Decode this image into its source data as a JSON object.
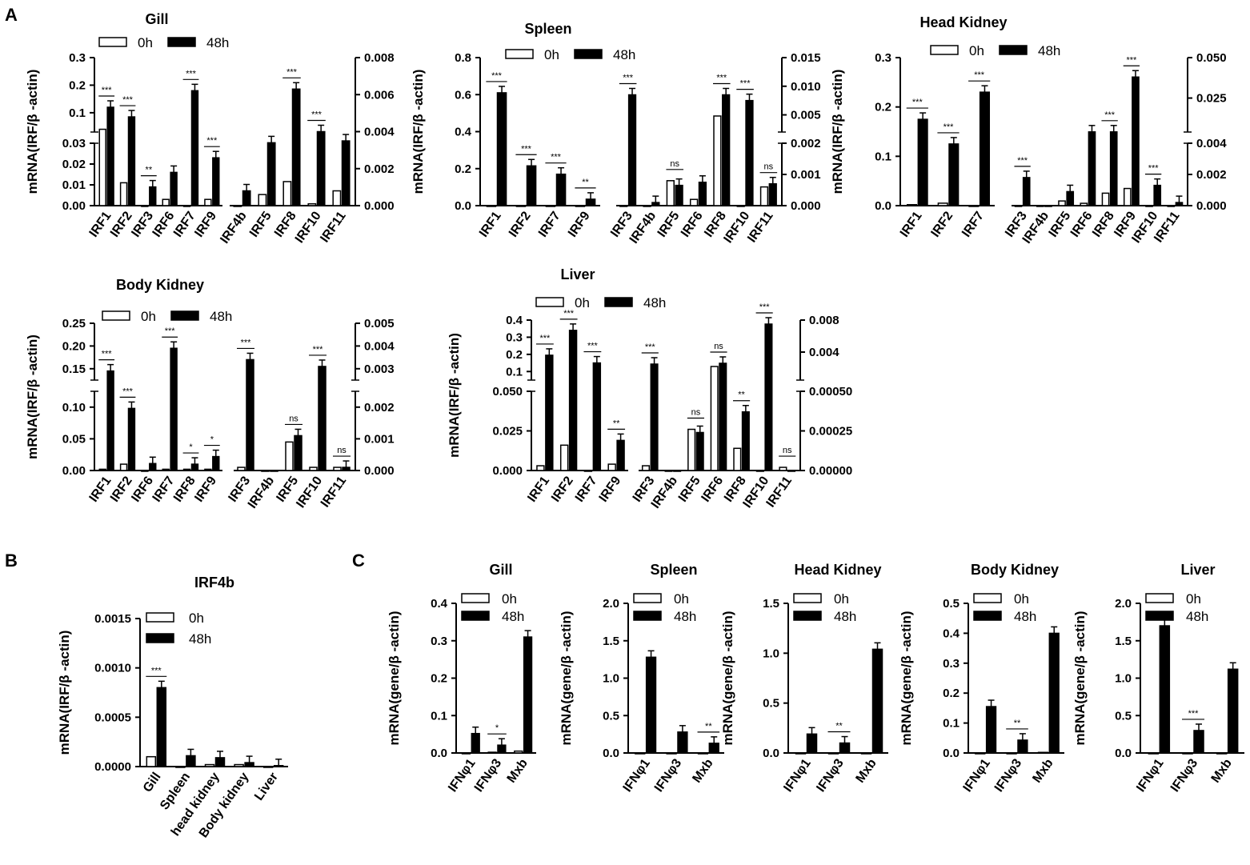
{
  "panel_labels": [
    "A",
    "B",
    "C"
  ],
  "legend": {
    "label_0h": "0h",
    "label_48h": "48h"
  },
  "chart_data": [
    {
      "id": "A-gill",
      "type": "bar",
      "title": "Gill",
      "ylabel": "mRNA(IRF/β -actin)",
      "left_axis": {
        "categories": [
          "IRF1",
          "IRF2",
          "IRF3",
          "IRF6",
          "IRF7",
          "IRF9"
        ],
        "broken": true,
        "lower_ylim": [
          0,
          0.03
        ],
        "lower_ticks": [
          "0.00",
          "0.01",
          "0.02",
          "0.03"
        ],
        "upper_ylim": [
          0.03,
          0.3
        ],
        "upper_ticks": [
          "0.1",
          "0.2",
          "0.3"
        ],
        "series": [
          {
            "name": "0h",
            "values": [
              0.04,
              0.011,
              0.0,
              0.003,
              0.0,
              0.003
            ]
          },
          {
            "name": "48h",
            "values": [
              0.12,
              0.085,
              0.009,
              0.016,
              0.18,
              0.023
            ]
          }
        ],
        "significance": [
          "***",
          "***",
          "**",
          "",
          "***",
          "***"
        ]
      },
      "right_axis": {
        "categories": [
          "IRF4b",
          "IRF5",
          "IRF8",
          "IRF10",
          "IRF11"
        ],
        "ylim": [
          0,
          0.008
        ],
        "ticks": [
          "0.000",
          "0.002",
          "0.004",
          "0.006",
          "0.008"
        ],
        "series": [
          {
            "name": "0h",
            "values": [
              0.0,
              0.0006,
              0.0013,
              0.0001,
              0.0008
            ]
          },
          {
            "name": "48h",
            "values": [
              0.0008,
              0.0034,
              0.0063,
              0.004,
              0.0035
            ]
          }
        ],
        "significance": [
          "",
          "",
          "***",
          "***",
          ""
        ]
      }
    },
    {
      "id": "A-spleen",
      "type": "bar",
      "title": "Spleen",
      "ylabel": "mRNA(IRF/β -actin)",
      "left_axis": {
        "categories": [
          "IRF1",
          "IRF2",
          "IRF7",
          "IRF9"
        ],
        "broken": false,
        "ylim": [
          0,
          0.8
        ],
        "ticks": [
          "0.0",
          "0.2",
          "0.4",
          "0.6",
          "0.8"
        ],
        "series": [
          {
            "name": "0h",
            "values": [
              0.0,
              0.0,
              0.0,
              0.0
            ]
          },
          {
            "name": "48h",
            "values": [
              0.61,
              0.215,
              0.17,
              0.035
            ]
          }
        ],
        "significance": [
          "***",
          "***",
          "***",
          "**"
        ]
      },
      "right_axis": {
        "categories": [
          "IRF3",
          "IRF4b",
          "IRF5",
          "IRF6",
          "IRF8",
          "IRF10",
          "IRF11"
        ],
        "broken": true,
        "lower_ylim": [
          0,
          0.002
        ],
        "lower_ticks": [
          "0.000",
          "0.001",
          "0.002"
        ],
        "upper_ylim": [
          0.002,
          0.015
        ],
        "upper_ticks": [
          "0.005",
          "0.010",
          "0.015"
        ],
        "series": [
          {
            "name": "0h",
            "values": [
              0.0,
              0.0,
              0.0008,
              0.0002,
              0.0048,
              0.0,
              0.0006
            ]
          },
          {
            "name": "48h",
            "values": [
              0.0085,
              0.0001,
              0.00065,
              0.00075,
              0.0085,
              0.0075,
              0.0007
            ]
          }
        ],
        "significance": [
          "***",
          "",
          "ns",
          "",
          "***",
          "***",
          "ns"
        ]
      }
    },
    {
      "id": "A-headkidney",
      "type": "bar",
      "title": "Head Kidney",
      "ylabel": "mRNA(IRF/β -actin)",
      "left_axis": {
        "categories": [
          "IRF1",
          "IRF2",
          "IRF7"
        ],
        "broken": false,
        "ylim": [
          0,
          0.3
        ],
        "ticks": [
          "0.0",
          "0.1",
          "0.2",
          "0.3"
        ],
        "series": [
          {
            "name": "0h",
            "values": [
              0.002,
              0.005,
              0.0
            ]
          },
          {
            "name": "48h",
            "values": [
              0.175,
              0.125,
              0.23
            ]
          }
        ],
        "significance": [
          "***",
          "***",
          "***"
        ]
      },
      "right_axis": {
        "categories": [
          "IRF3",
          "IRF4b",
          "IRF5",
          "IRF6",
          "IRF8",
          "IRF9",
          "IRF10",
          "IRF11"
        ],
        "broken": true,
        "lower_ylim": [
          0,
          0.004
        ],
        "lower_ticks": [
          "0.000",
          "0.002",
          "0.004"
        ],
        "upper_ylim": [
          0.004,
          0.05
        ],
        "upper_ticks": [
          "0.025",
          "0.050"
        ],
        "series": [
          {
            "name": "0h",
            "values": [
              0.0,
              0.0,
              0.0003,
              0.00015,
              0.0008,
              0.0011,
              0.0,
              0.0
            ]
          },
          {
            "name": "48h",
            "values": [
              0.0018,
              0.0,
              0.0009,
              0.0041,
              0.0041,
              0.038,
              0.0013,
              0.0002
            ]
          }
        ],
        "significance": [
          "***",
          "",
          "",
          "",
          "***",
          "***",
          "***",
          ""
        ]
      }
    },
    {
      "id": "A-bodykidney",
      "type": "bar",
      "title": "Body Kidney",
      "ylabel": "mRNA(IRF/β -actin)",
      "left_axis": {
        "categories": [
          "IRF1",
          "IRF2",
          "IRF6",
          "IRF7",
          "IRF8",
          "IRF9"
        ],
        "broken": true,
        "lower_ylim": [
          0,
          0.125
        ],
        "lower_ticks": [
          "0.00",
          "0.05",
          "0.10"
        ],
        "upper_ylim": [
          0.125,
          0.25
        ],
        "upper_ticks": [
          "0.15",
          "0.20",
          "0.25"
        ],
        "series": [
          {
            "name": "0h",
            "values": [
              0.002,
              0.01,
              0.0,
              0.002,
              0.002,
              0.002
            ]
          },
          {
            "name": "48h",
            "values": [
              0.145,
              0.098,
              0.011,
              0.195,
              0.01,
              0.022
            ]
          }
        ],
        "significance": [
          "***",
          "***",
          "",
          "***",
          "*",
          "*"
        ]
      },
      "right_axis": {
        "categories": [
          "IRF3",
          "IRF4b",
          "IRF5",
          "IRF10",
          "IRF11"
        ],
        "broken": true,
        "lower_ylim": [
          0,
          0.0025
        ],
        "lower_ticks": [
          "0.000",
          "0.001",
          "0.002"
        ],
        "upper_ylim": [
          0.0025,
          0.005
        ],
        "upper_ticks": [
          "0.003",
          "0.004",
          "0.005"
        ],
        "series": [
          {
            "name": "0h",
            "values": [
              0.0001,
              0.0,
              0.0009,
              0.0001,
              0.0001
            ]
          },
          {
            "name": "48h",
            "values": [
              0.0034,
              0.0,
              0.0011,
              0.0031,
              0.0001
            ]
          }
        ],
        "significance": [
          "***",
          "",
          "ns",
          "***",
          "ns"
        ]
      }
    },
    {
      "id": "A-liver",
      "type": "bar",
      "title": "Liver",
      "ylabel": "mRNA(IRF/β -actin)",
      "left_axis": {
        "categories": [
          "IRF1",
          "IRF2",
          "IRF7",
          "IRF9"
        ],
        "broken": true,
        "lower_ylim": [
          0,
          0.05
        ],
        "lower_ticks": [
          "0.000",
          "0.025",
          "0.050"
        ],
        "upper_ylim": [
          0.05,
          0.4
        ],
        "upper_ticks": [
          "0.1",
          "0.2",
          "0.3",
          "0.4"
        ],
        "series": [
          {
            "name": "0h",
            "values": [
              0.003,
              0.016,
              0.0,
              0.004
            ]
          },
          {
            "name": "48h",
            "values": [
              0.195,
              0.34,
              0.15,
              0.019
            ]
          }
        ],
        "significance": [
          "***",
          "***",
          "***",
          "**"
        ]
      },
      "right_axis": {
        "categories": [
          "IRF3",
          "IRF4b",
          "IRF5",
          "IRF6",
          "IRF8",
          "IRF10",
          "IRF11"
        ],
        "broken": true,
        "lower_ylim": [
          0,
          0.0005
        ],
        "lower_ticks": [
          "0.00000",
          "0.00025",
          "0.00050"
        ],
        "upper_ylim": [
          0.0005,
          0.008
        ],
        "upper_ticks": [
          "0.004",
          "0.008"
        ],
        "series": [
          {
            "name": "0h",
            "values": [
              3e-05,
              0.0,
              0.00026,
              0.0022,
              0.00014,
              0.0,
              2e-05
            ]
          },
          {
            "name": "48h",
            "values": [
              0.0025,
              0.0,
              0.00024,
              0.0026,
              0.00037,
              0.0075,
              0.0
            ]
          }
        ],
        "significance": [
          "***",
          "",
          "ns",
          "ns",
          "**",
          "***",
          "ns"
        ]
      }
    },
    {
      "id": "B-irf4b",
      "type": "bar",
      "title": "IRF4b",
      "ylabel": "mRNA(IRF/β -actin)",
      "categories": [
        "Gill",
        "Spleen",
        "head kidney",
        "Body kidney",
        "Liver"
      ],
      "ylim": [
        0,
        0.0015
      ],
      "ticks": [
        "0.0000",
        "0.0005",
        "0.0010",
        "0.0015"
      ],
      "series": [
        {
          "name": "0h",
          "values": [
            0.0001,
            0.0,
            2e-05,
            2e-05,
            0.0
          ]
        },
        {
          "name": "48h",
          "values": [
            0.0008,
            0.00011,
            9e-05,
            4e-05,
            1e-05
          ]
        }
      ],
      "significance": [
        "***",
        "",
        "",
        "",
        ""
      ]
    },
    {
      "id": "C-gill",
      "type": "bar",
      "title": "Gill",
      "ylabel": "mRNA(gene/β -actin)",
      "categories": [
        "IFNφ1",
        "IFNφ3",
        "Mxb"
      ],
      "ylim": [
        0,
        0.4
      ],
      "ticks": [
        "0.0",
        "0.1",
        "0.2",
        "0.3",
        "0.4"
      ],
      "series": [
        {
          "name": "0h",
          "values": [
            0.0,
            0.002,
            0.005
          ]
        },
        {
          "name": "48h",
          "values": [
            0.052,
            0.021,
            0.31
          ]
        }
      ],
      "significance": [
        "",
        "*",
        ""
      ]
    },
    {
      "id": "C-spleen",
      "type": "bar",
      "title": "Spleen",
      "ylabel": "mRNA(gene/β -actin)",
      "categories": [
        "IFNφ1",
        "IFNφ3",
        "Mxb"
      ],
      "ylim": [
        0,
        2.0
      ],
      "ticks": [
        "0.0",
        "0.5",
        "1.0",
        "1.5",
        "2.0"
      ],
      "series": [
        {
          "name": "0h",
          "values": [
            0.0,
            0.0,
            0.0
          ]
        },
        {
          "name": "48h",
          "values": [
            1.28,
            0.28,
            0.13
          ]
        }
      ],
      "significance": [
        "",
        "",
        "**"
      ]
    },
    {
      "id": "C-headkidney",
      "type": "bar",
      "title": "Head Kidney",
      "ylabel": "mRNA(gene/β -actin)",
      "categories": [
        "IFNφ1",
        "IFNφ3",
        "Mxb"
      ],
      "ylim": [
        0,
        1.5
      ],
      "ticks": [
        "0.0",
        "0.5",
        "1.0",
        "1.5"
      ],
      "series": [
        {
          "name": "0h",
          "values": [
            0.0,
            0.0,
            0.0
          ]
        },
        {
          "name": "48h",
          "values": [
            0.19,
            0.1,
            1.04
          ]
        }
      ],
      "significance": [
        "",
        "**",
        ""
      ]
    },
    {
      "id": "C-bodykidney",
      "type": "bar",
      "title": "Body Kidney",
      "ylabel": "mRNA(gene/β -actin)",
      "categories": [
        "IFNφ1",
        "IFNφ3",
        "Mxb"
      ],
      "ylim": [
        0,
        0.5
      ],
      "ticks": [
        "0.0",
        "0.1",
        "0.2",
        "0.3",
        "0.4",
        "0.5"
      ],
      "series": [
        {
          "name": "0h",
          "values": [
            0.0,
            0.0,
            0.002
          ]
        },
        {
          "name": "48h",
          "values": [
            0.155,
            0.043,
            0.4
          ]
        }
      ],
      "significance": [
        "",
        "**",
        ""
      ]
    },
    {
      "id": "C-liver",
      "type": "bar",
      "title": "Liver",
      "ylabel": "mRNA(gene/β -actin)",
      "categories": [
        "IFNφ1",
        "IFNφ3",
        "Mxb"
      ],
      "ylim": [
        0,
        2.0
      ],
      "ticks": [
        "0.0",
        "0.5",
        "1.0",
        "1.5",
        "2.0"
      ],
      "series": [
        {
          "name": "0h",
          "values": [
            0.0,
            0.0,
            0.0
          ]
        },
        {
          "name": "48h",
          "values": [
            1.7,
            0.3,
            1.12
          ]
        }
      ],
      "significance": [
        "",
        "***",
        ""
      ]
    }
  ]
}
